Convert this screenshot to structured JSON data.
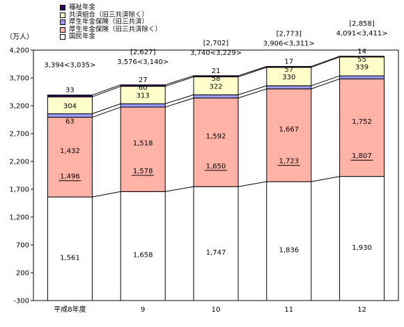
{
  "chart_data": {
    "type": "bar",
    "stacked": true,
    "unit_label": "（万人）",
    "categories": [
      "平成8年度",
      "9",
      "10",
      "11",
      "12"
    ],
    "ylim": [
      -300,
      4200
    ],
    "yticks": [
      -300,
      200,
      700,
      1200,
      1700,
      2200,
      2700,
      3200,
      3700,
      4200
    ],
    "ytick_labels": [
      "-300",
      "200",
      "700",
      "1,200",
      "1,700",
      "2,200",
      "2,700",
      "3,200",
      "3,700",
      "4,200"
    ],
    "legend_position": "top-left",
    "series": [
      {
        "name": "国民年金",
        "color": "#ffffff",
        "values": [
          1561,
          1658,
          1747,
          1836,
          1930
        ],
        "labels": [
          "1,561",
          "1,658",
          "1,747",
          "1,836",
          "1,930"
        ]
      },
      {
        "name": "厚生年金保険（旧三共済除く）",
        "color": "#ffb3a7",
        "values": [
          1432,
          1518,
          1592,
          1667,
          1752
        ],
        "labels": [
          "1,432",
          "1,518",
          "1,592",
          "1,667",
          "1,752"
        ]
      },
      {
        "name": "厚生年金保険（旧三共済）",
        "color": "#9999ff",
        "values": [
          63,
          60,
          58,
          57,
          55
        ],
        "labels": [
          "63",
          "60",
          "58",
          "57",
          "55"
        ]
      },
      {
        "name": "共済組合（旧三共済除く）",
        "color": "#ffffcc",
        "values": [
          304,
          313,
          322,
          330,
          339
        ],
        "labels": [
          "304",
          "313",
          "322",
          "330",
          "339"
        ]
      },
      {
        "name": "福祉年金",
        "color": "#330066",
        "values": [
          33,
          27,
          21,
          17,
          14
        ],
        "labels": [
          "33",
          "27",
          "21",
          "17",
          "14"
        ]
      }
    ],
    "underlined_annotations": [
      "1,496",
      "1,578",
      "1,650",
      "1,723",
      "1,807"
    ],
    "bracket_annotations": [
      "",
      "[2,627]",
      "[2,702]",
      "[2,773]",
      "[2,858]"
    ],
    "total_annotations": [
      "3,394<3,035>",
      "3,576<3,140>",
      "3,740<3,229>",
      "3,906<3,311>",
      "4,091<3,411>"
    ]
  }
}
